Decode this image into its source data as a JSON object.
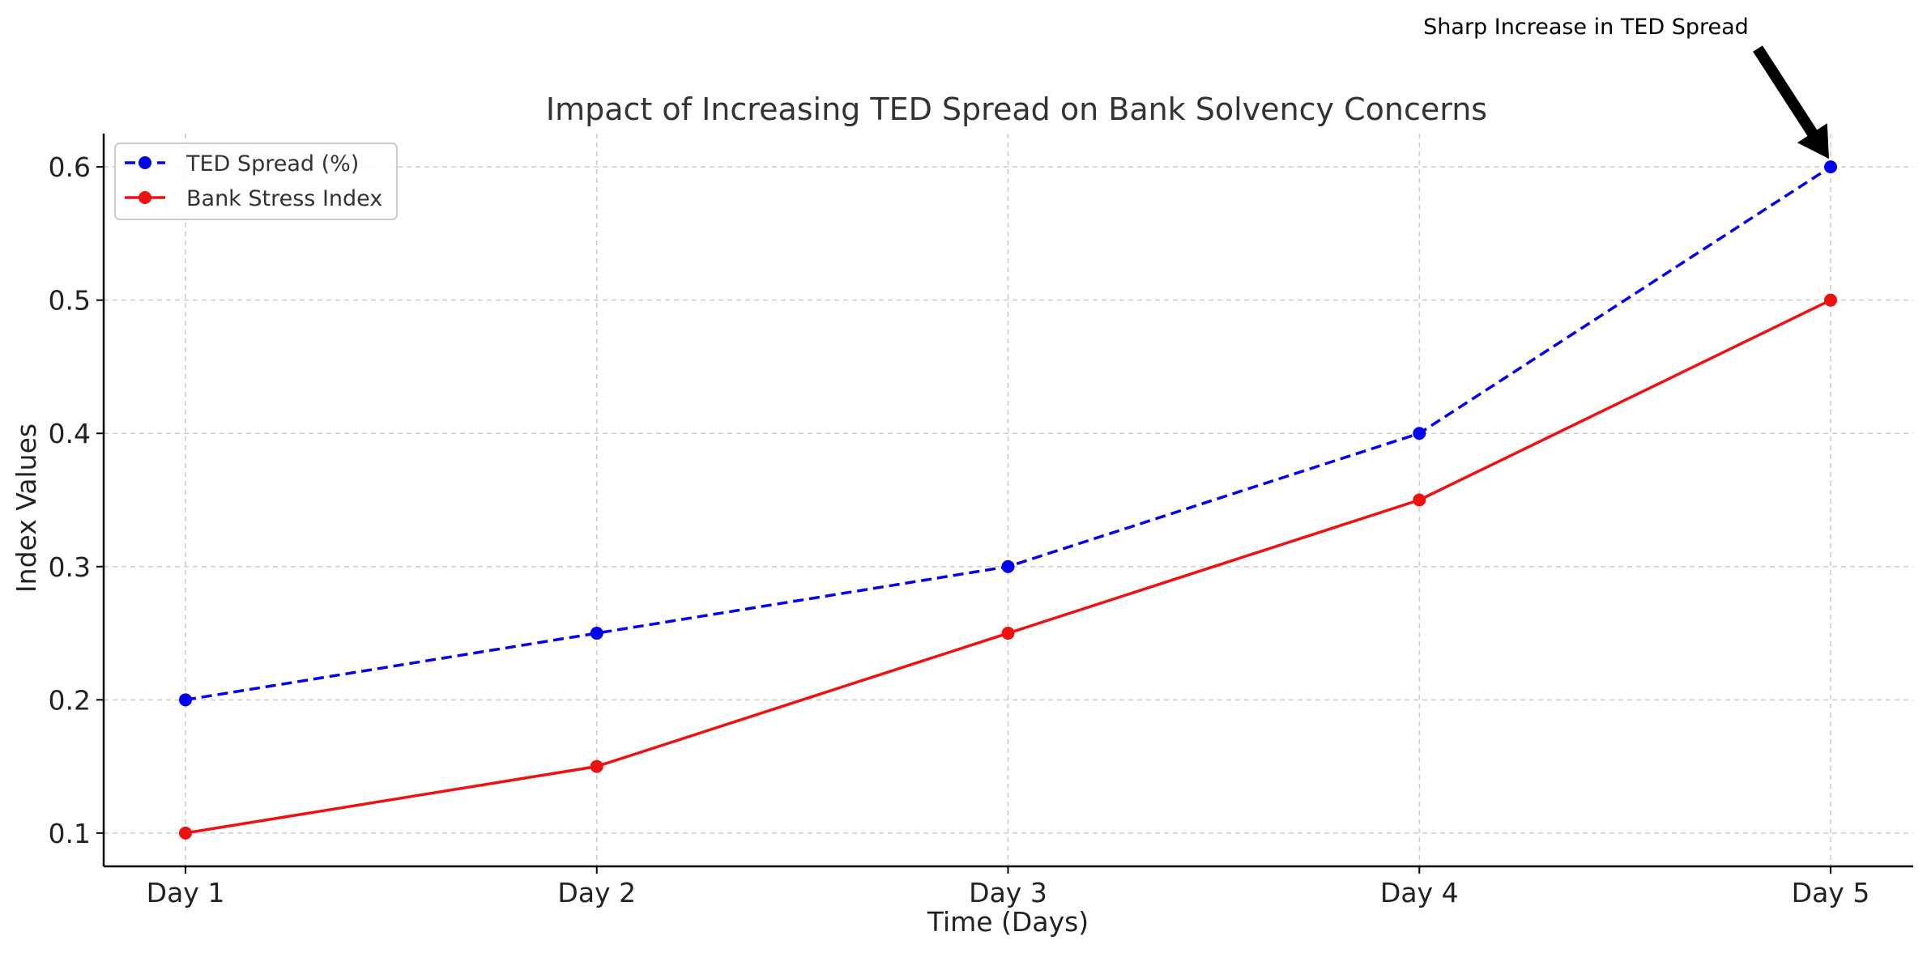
{
  "chart_data": {
    "type": "line",
    "title": "Impact of Increasing TED Spread on Bank Solvency Concerns",
    "xlabel": "Time (Days)",
    "ylabel": "Index Values",
    "categories": [
      "Day 1",
      "Day 2",
      "Day 3",
      "Day 4",
      "Day 5"
    ],
    "y_ticks": [
      0.1,
      0.2,
      0.3,
      0.4,
      0.5,
      0.6
    ],
    "y_tick_labels": [
      "0.1",
      "0.2",
      "0.3",
      "0.4",
      "0.5",
      "0.6"
    ],
    "ylim": [
      0.075,
      0.625
    ],
    "grid": true,
    "legend_position": "top-left",
    "series": [
      {
        "name": "TED Spread (%)",
        "values": [
          0.2,
          0.25,
          0.3,
          0.4,
          0.6
        ],
        "color": "#0000ee",
        "line_style": "dashed",
        "marker": "circle"
      },
      {
        "name": "Bank Stress Index",
        "values": [
          0.1,
          0.15,
          0.25,
          0.35,
          0.5
        ],
        "color": "#ee1111",
        "line_style": "solid",
        "marker": "circle"
      }
    ],
    "annotations": [
      {
        "text": "Sharp Increase in TED Spread",
        "category": "Day 5",
        "value": 0.6,
        "arrow": true
      }
    ]
  }
}
